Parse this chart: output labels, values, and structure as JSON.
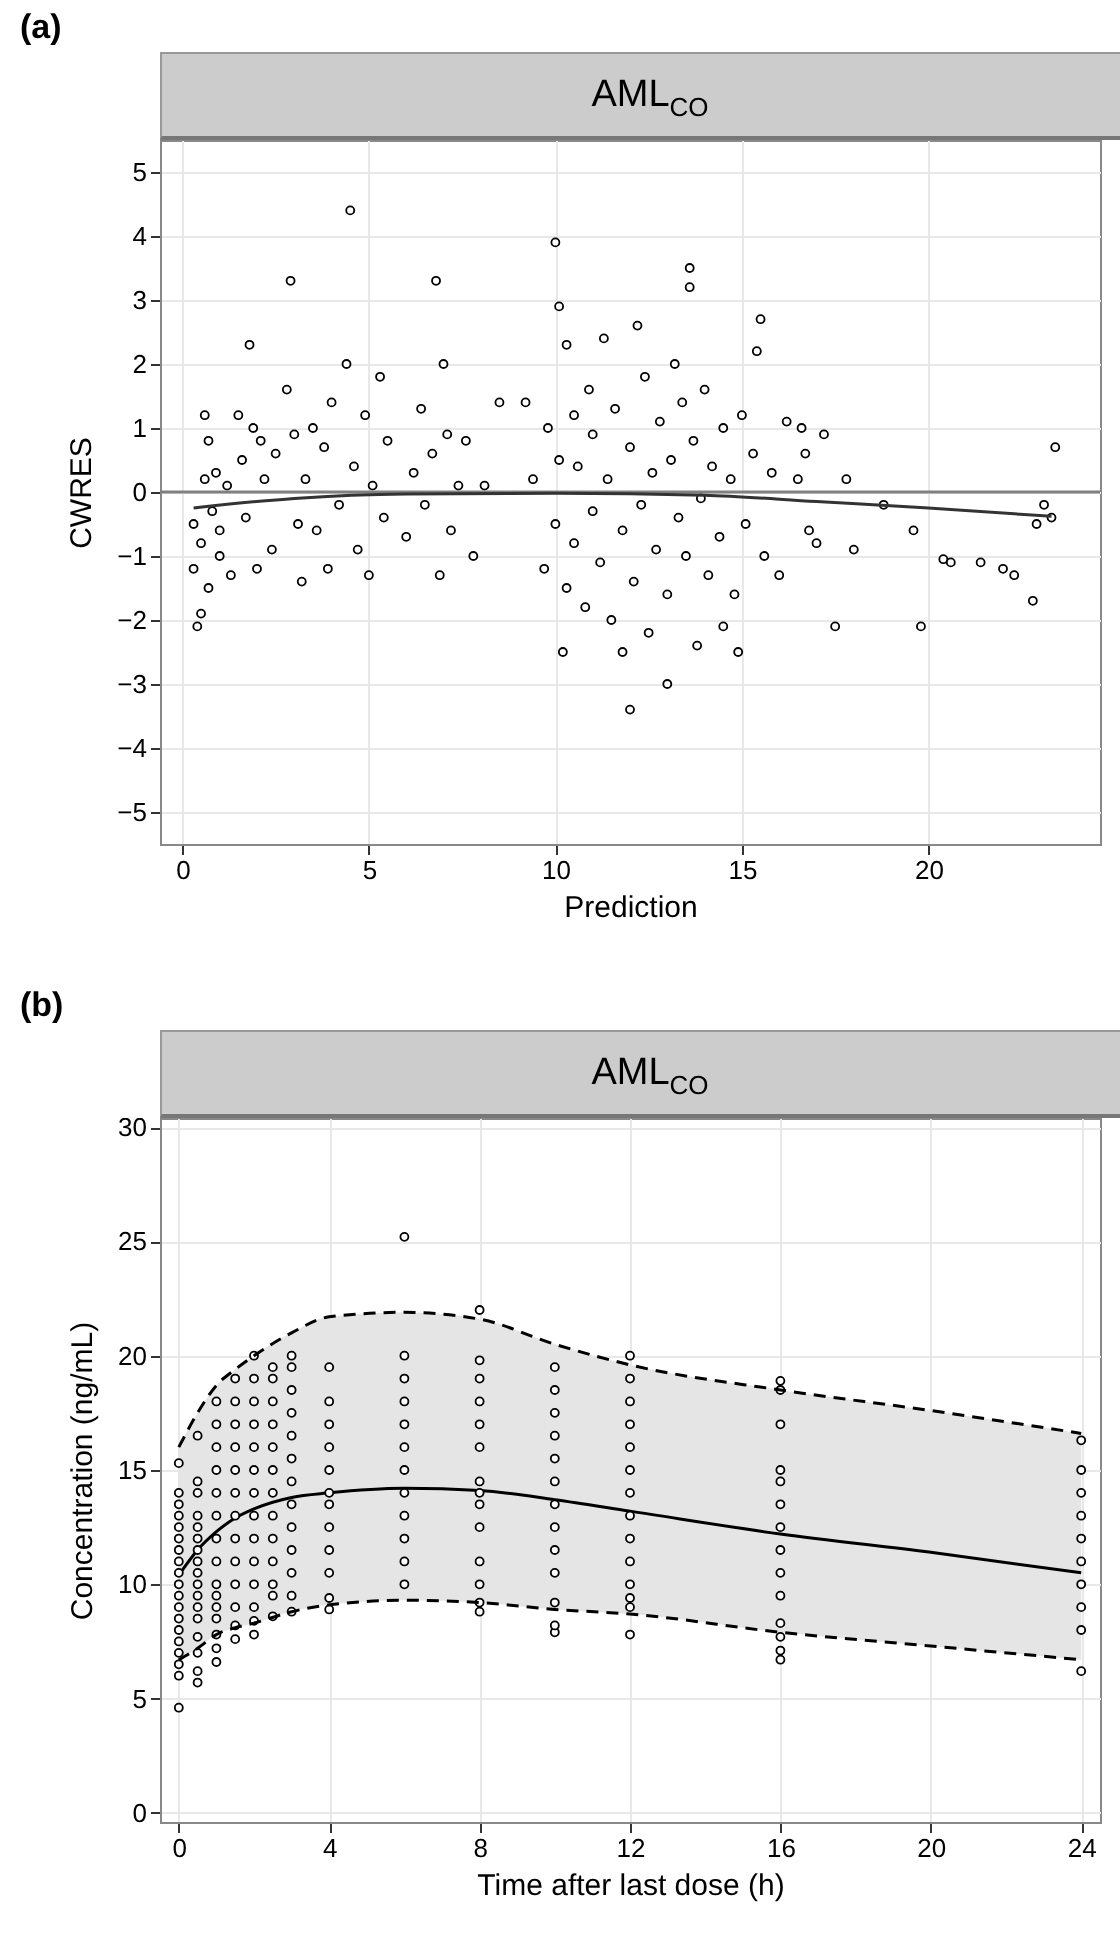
{
  "chart_data": [
    {
      "type": "scatter",
      "title": "AML$_{CO}$",
      "annotations": [
        "(a)"
      ],
      "xlabel": "Prediction",
      "ylabel": "CWRES",
      "xlim": [
        -0.6,
        24.6
      ],
      "xticks": [
        0,
        5,
        10,
        15,
        20
      ],
      "ylim": [
        -5.5,
        5.5
      ],
      "yticks": [
        -5,
        -4,
        -3,
        -2,
        -1,
        0,
        1,
        2,
        3,
        4,
        5
      ],
      "grid": true,
      "ref_lines": [
        {
          "axis": "y",
          "value": 0,
          "color": "#808080"
        }
      ],
      "series": [
        {
          "type": "scatter",
          "marker": "circle",
          "color": "#000000",
          "x": [
            0.3,
            0.3,
            0.4,
            0.5,
            0.5,
            0.6,
            0.6,
            0.7,
            0.7,
            0.8,
            0.9,
            1.0,
            1.0,
            1.2,
            1.3,
            1.5,
            1.6,
            1.7,
            1.8,
            1.9,
            2.0,
            2.1,
            2.2,
            2.4,
            2.5,
            2.8,
            2.9,
            3.0,
            3.1,
            3.2,
            3.3,
            3.5,
            3.6,
            3.8,
            3.9,
            4.0,
            4.2,
            4.4,
            4.5,
            4.6,
            4.7,
            4.9,
            5.0,
            5.1,
            5.3,
            5.4,
            5.5,
            6.0,
            6.2,
            6.4,
            6.5,
            6.7,
            6.8,
            6.9,
            7.0,
            7.1,
            7.2,
            7.4,
            7.6,
            7.8,
            8.1,
            8.5,
            9.2,
            9.4,
            9.7,
            9.8,
            10.0,
            10.0,
            10.1,
            10.1,
            10.2,
            10.3,
            10.3,
            10.5,
            10.5,
            10.6,
            10.8,
            10.9,
            11.0,
            11.0,
            11.2,
            11.3,
            11.4,
            11.5,
            11.6,
            11.8,
            11.8,
            12.0,
            12.0,
            12.1,
            12.2,
            12.3,
            12.4,
            12.5,
            12.6,
            12.7,
            12.8,
            13.0,
            13.0,
            13.1,
            13.2,
            13.3,
            13.4,
            13.5,
            13.6,
            13.6,
            13.7,
            13.8,
            13.9,
            14.0,
            14.1,
            14.2,
            14.4,
            14.5,
            14.5,
            14.7,
            14.8,
            14.9,
            15.0,
            15.1,
            15.3,
            15.4,
            15.5,
            15.6,
            15.8,
            16.0,
            16.2,
            16.5,
            16.6,
            16.7,
            16.8,
            17.0,
            17.2,
            17.5,
            17.8,
            18.0,
            18.8,
            19.6,
            19.8,
            20.4,
            20.6,
            21.4,
            22.0,
            22.3,
            22.8,
            22.9,
            23.1,
            23.3,
            23.4
          ],
          "values": [
            -0.5,
            -1.2,
            -2.1,
            -1.9,
            -0.8,
            0.2,
            1.2,
            0.8,
            -1.5,
            -0.3,
            0.3,
            -1.0,
            -0.6,
            0.1,
            -1.3,
            1.2,
            0.5,
            -0.4,
            2.3,
            1.0,
            -1.2,
            0.8,
            0.2,
            -0.9,
            0.6,
            1.6,
            3.3,
            0.9,
            -0.5,
            -1.4,
            0.2,
            1.0,
            -0.6,
            0.7,
            -1.2,
            1.4,
            -0.2,
            2.0,
            4.4,
            0.4,
            -0.9,
            1.2,
            -1.3,
            0.1,
            1.8,
            -0.4,
            0.8,
            -0.7,
            0.3,
            1.3,
            -0.2,
            0.6,
            3.3,
            -1.3,
            2.0,
            0.9,
            -0.6,
            0.1,
            0.8,
            -1.0,
            0.1,
            1.4,
            1.4,
            0.2,
            -1.2,
            1.0,
            3.9,
            -0.5,
            2.9,
            0.5,
            -2.5,
            2.3,
            -1.5,
            1.2,
            -0.8,
            0.4,
            -1.8,
            1.6,
            -0.3,
            0.9,
            -1.1,
            2.4,
            0.2,
            -2.0,
            1.3,
            -0.6,
            -2.5,
            -3.4,
            0.7,
            -1.4,
            2.6,
            -0.2,
            1.8,
            -2.2,
            0.3,
            -0.9,
            1.1,
            -3.0,
            -1.6,
            0.5,
            2.0,
            -0.4,
            1.4,
            -1.0,
            3.5,
            3.2,
            0.8,
            -2.4,
            -0.1,
            1.6,
            -1.3,
            0.4,
            -0.7,
            1.0,
            -2.1,
            0.2,
            -1.6,
            -2.5,
            1.2,
            -0.5,
            0.6,
            2.2,
            2.7,
            -1.0,
            0.3,
            -1.3,
            1.1,
            0.2,
            1.0,
            0.6,
            -0.6,
            -0.8,
            0.9,
            -2.1,
            0.2,
            -0.9,
            -0.2,
            -0.6,
            -2.1,
            -1.05,
            -1.1,
            -1.1,
            -1.2,
            -1.3,
            -1.7,
            -0.5,
            -0.2,
            -0.4,
            0.7
          ]
        },
        {
          "type": "line",
          "marker": "none",
          "color": "#333333",
          "x": [
            0.3,
            3,
            6,
            10,
            14,
            17,
            20,
            23.3
          ],
          "values": [
            -0.25,
            -0.1,
            -0.03,
            -0.02,
            -0.05,
            -0.15,
            -0.25,
            -0.38
          ]
        }
      ]
    },
    {
      "type": "scatter",
      "title": "AML$_{CO}$",
      "annotations": [
        "(b)"
      ],
      "xlabel": "Time after last dose (h)",
      "ylabel": "Concentration (ng/mL)",
      "xlim": [
        -0.5,
        24.5
      ],
      "xticks": [
        0,
        4,
        8,
        12,
        16,
        20,
        24
      ],
      "ylim": [
        -0.4,
        30.4
      ],
      "yticks": [
        0,
        5,
        10,
        15,
        20,
        25,
        30
      ],
      "grid": true,
      "series": [
        {
          "type": "line",
          "color": "#000000",
          "line_style": "dashed",
          "marker": "none",
          "x": [
            0,
            0.5,
            1,
            1.5,
            2,
            3,
            4,
            6,
            8,
            10,
            12,
            16,
            20,
            24
          ],
          "values": [
            6.7,
            7.2,
            7.8,
            8.1,
            8.3,
            8.8,
            9.1,
            9.3,
            9.2,
            8.9,
            8.7,
            7.9,
            7.3,
            6.7
          ]
        },
        {
          "type": "line",
          "color": "#000000",
          "line_style": "dashed",
          "marker": "none",
          "x": [
            0,
            0.5,
            1,
            1.5,
            2,
            3,
            4,
            6,
            8,
            10,
            12,
            16,
            20,
            24
          ],
          "values": [
            16.0,
            17.5,
            18.7,
            19.4,
            20.0,
            21.0,
            21.7,
            21.9,
            21.6,
            20.5,
            19.6,
            18.5,
            17.6,
            16.6
          ]
        },
        {
          "type": "line",
          "color": "#000000",
          "line_style": "solid",
          "marker": "none",
          "x": [
            0,
            0.5,
            1,
            1.5,
            2,
            3,
            4,
            6,
            8,
            10,
            12,
            16,
            20,
            24
          ],
          "values": [
            10.4,
            11.5,
            12.3,
            12.9,
            13.3,
            13.8,
            14.0,
            14.2,
            14.1,
            13.7,
            13.2,
            12.2,
            11.4,
            10.5
          ],
          "lower": [
            6.7,
            7.2,
            7.8,
            8.1,
            8.3,
            8.8,
            9.1,
            9.3,
            9.2,
            8.9,
            8.7,
            7.9,
            7.3,
            6.7
          ],
          "upper": [
            16.0,
            17.5,
            18.7,
            19.4,
            20.0,
            21.0,
            21.7,
            21.9,
            21.6,
            20.5,
            19.6,
            18.5,
            17.6,
            16.6
          ]
        },
        {
          "type": "scatter",
          "marker": "circle",
          "color": "#000000",
          "x": [
            0,
            0,
            0,
            0,
            0,
            0,
            0,
            0,
            0,
            0,
            0,
            0,
            0,
            0,
            0,
            0,
            0,
            0,
            0,
            0.5,
            0.5,
            0.5,
            0.5,
            0.5,
            0.5,
            0.5,
            0.5,
            0.5,
            0.5,
            0.5,
            0.5,
            0.5,
            0.5,
            0.5,
            0.5,
            0.5,
            1,
            1,
            1,
            1,
            1,
            1,
            1,
            1,
            1,
            1,
            1,
            1,
            1,
            1,
            1,
            1.5,
            1.5,
            1.5,
            1.5,
            1.5,
            1.5,
            1.5,
            1.5,
            1.5,
            1.5,
            1.5,
            1.5,
            1.5,
            2,
            2,
            2,
            2,
            2,
            2,
            2,
            2,
            2,
            2,
            2,
            2,
            2,
            2,
            2.5,
            2.5,
            2.5,
            2.5,
            2.5,
            2.5,
            2.5,
            2.5,
            2.5,
            2.5,
            2.5,
            2.5,
            2.5,
            3,
            3,
            3,
            3,
            3,
            3,
            3,
            3,
            3,
            3,
            3,
            3,
            3,
            4,
            4,
            4,
            4,
            4,
            4,
            4,
            4,
            4,
            4,
            4,
            4,
            6,
            6,
            6,
            6,
            6,
            6,
            6,
            6,
            6,
            6,
            6,
            6,
            8,
            8,
            8,
            8,
            8,
            8,
            8,
            8,
            8,
            8,
            8,
            8,
            8,
            8,
            10,
            10,
            10,
            10,
            10,
            10,
            10,
            10,
            10,
            10,
            10,
            10,
            10,
            12,
            12,
            12,
            12,
            12,
            12,
            12,
            12,
            12,
            12,
            12,
            12,
            12,
            12,
            16,
            16,
            16,
            16,
            16,
            16,
            16,
            16,
            16,
            16,
            16,
            16,
            16,
            16,
            24,
            24,
            24,
            24,
            24,
            24,
            24,
            24,
            24,
            24
          ],
          "values": [
            4.6,
            6.0,
            6.5,
            7.0,
            7.5,
            8.0,
            8.5,
            9.0,
            9.5,
            10.0,
            10.5,
            11.0,
            11.5,
            12.0,
            12.5,
            13.0,
            13.5,
            14.0,
            15.3,
            5.7,
            6.2,
            7.0,
            7.7,
            8.5,
            9.0,
            9.5,
            10.0,
            10.5,
            11.0,
            11.5,
            12.0,
            12.5,
            13.0,
            14.0,
            14.5,
            16.5,
            6.6,
            7.2,
            7.8,
            8.5,
            9.0,
            9.5,
            10.0,
            11.0,
            12.0,
            13.0,
            14.0,
            15.0,
            16.0,
            17.0,
            18.0,
            7.6,
            8.2,
            9.0,
            10.0,
            11.0,
            12.0,
            13.0,
            14.0,
            15.0,
            16.0,
            17.0,
            18.0,
            19.0,
            7.8,
            8.4,
            9.0,
            10.0,
            11.0,
            12.0,
            13.0,
            14.0,
            15.0,
            16.0,
            17.0,
            18.0,
            19.0,
            20.0,
            8.6,
            9.5,
            10.0,
            11.0,
            12.0,
            13.0,
            14.0,
            15.0,
            16.0,
            17.0,
            18.0,
            19.0,
            19.5,
            8.8,
            9.5,
            10.5,
            11.5,
            12.5,
            13.5,
            14.5,
            15.5,
            16.5,
            17.5,
            18.5,
            19.5,
            20.0,
            8.9,
            9.4,
            10.5,
            11.5,
            12.5,
            13.5,
            14.0,
            15.0,
            16.0,
            17.0,
            18.0,
            19.5,
            10.0,
            11.0,
            12.0,
            13.0,
            14.0,
            15.0,
            16.0,
            17.0,
            18.0,
            19.0,
            20.0,
            25.2,
            8.8,
            9.2,
            10.0,
            11.0,
            12.5,
            13.5,
            14.0,
            14.5,
            16.0,
            17.0,
            18.0,
            19.0,
            19.8,
            22.0,
            7.9,
            8.2,
            9.2,
            10.5,
            11.5,
            12.5,
            13.5,
            14.5,
            15.5,
            16.5,
            17.5,
            18.5,
            19.5,
            7.8,
            9.0,
            9.4,
            10.0,
            11.0,
            12.0,
            13.0,
            14.0,
            15.0,
            16.0,
            17.0,
            18.0,
            19.0,
            20.0,
            6.7,
            7.1,
            7.7,
            8.3,
            9.5,
            10.5,
            11.5,
            12.5,
            13.5,
            14.5,
            15.0,
            17.0,
            18.5,
            18.9,
            6.2,
            8.0,
            9.0,
            10.0,
            11.0,
            12.0,
            13.0,
            14.0,
            15.0,
            16.3
          ]
        }
      ]
    }
  ]
}
